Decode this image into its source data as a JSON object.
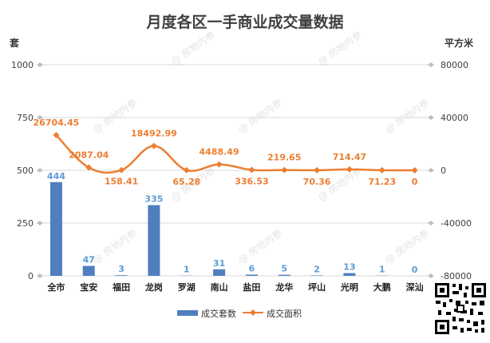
{
  "chart_data": {
    "type": "bar+line",
    "title": "月度各区一手商业成交量数据",
    "left_unit": "套",
    "right_unit": "平方米",
    "categories": [
      "全市",
      "宝安",
      "福田",
      "龙岗",
      "罗湖",
      "南山",
      "盐田",
      "龙华",
      "坪山",
      "光明",
      "大鹏",
      "深汕"
    ],
    "left_axis": {
      "min": 0,
      "max": 1000,
      "ticks": [
        0,
        250,
        500,
        750,
        1000
      ]
    },
    "right_axis": {
      "min": -80000,
      "max": 80000,
      "ticks": [
        -80000,
        -40000,
        0,
        40000,
        80000
      ]
    },
    "series": [
      {
        "name": "成交套数",
        "type": "bar",
        "axis": "left",
        "color": "#4f7fbf",
        "values": [
          444,
          47,
          3,
          335,
          1,
          31,
          6,
          5,
          2,
          13,
          1,
          0
        ],
        "labels": [
          "444",
          "47",
          "3",
          "335",
          "1",
          "31",
          "6",
          "5",
          "2",
          "13",
          "1",
          "0"
        ]
      },
      {
        "name": "成交面积",
        "type": "line",
        "axis": "right",
        "color": "#ed7d31",
        "values": [
          26704.45,
          2087.04,
          158.41,
          18492.99,
          65.28,
          4488.49,
          336.53,
          219.65,
          70.36,
          714.47,
          71.23,
          0
        ],
        "labels": [
          "26704.45",
          "2087.04",
          "158.41",
          "18492.99",
          "65.28",
          "4488.49",
          "336.53",
          "219.65",
          "70.36",
          "714.47",
          "71.23",
          "0"
        ]
      }
    ],
    "grid": true,
    "legend_position": "bottom",
    "watermark": "房地内参"
  }
}
